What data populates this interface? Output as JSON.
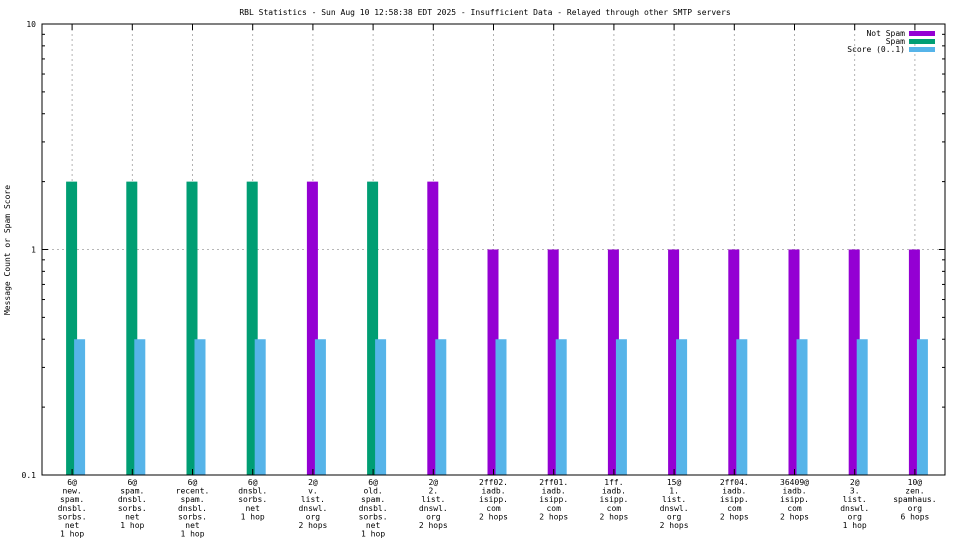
{
  "chart_data": {
    "type": "bar",
    "title": "RBL Statistics - Sun Aug 10 12:58:38 EDT 2025 - Insufficient Data - Relayed through other SMTP servers",
    "xlabel": "",
    "ylabel": "Message Count or Spam Score",
    "yscale": "log",
    "ylim": [
      0.1,
      10
    ],
    "yticks": [
      {
        "value": 0.1,
        "label": "0.1"
      },
      {
        "value": 1,
        "label": "1"
      },
      {
        "value": 10,
        "label": "10"
      }
    ],
    "grid": true,
    "legend_position": "top-right",
    "categories": [
      [
        "6@",
        "new.",
        "spam.",
        "dnsbl.",
        "sorbs.",
        "net",
        "1 hop"
      ],
      [
        "6@",
        "spam.",
        "dnsbl.",
        "sorbs.",
        "net",
        "1 hop"
      ],
      [
        "6@",
        "recent.",
        "spam.",
        "dnsbl.",
        "sorbs.",
        "net",
        "1 hop"
      ],
      [
        "6@",
        "dnsbl.",
        "sorbs.",
        "net",
        "1 hop"
      ],
      [
        "2@",
        "v.",
        "list.",
        "dnswl.",
        "org",
        "2 hops"
      ],
      [
        "6@",
        "old.",
        "spam.",
        "dnsbl.",
        "sorbs.",
        "net",
        "1 hop"
      ],
      [
        "2@",
        "2.",
        "list.",
        "dnswl.",
        "org",
        "2 hops"
      ],
      [
        "2ff02.",
        "iadb.",
        "isipp.",
        "com",
        "2 hops"
      ],
      [
        "2ff01.",
        "iadb.",
        "isipp.",
        "com",
        "2 hops"
      ],
      [
        "1ff.",
        "iadb.",
        "isipp.",
        "com",
        "2 hops"
      ],
      [
        "15@",
        "1.",
        "list.",
        "dnswl.",
        "org",
        "2 hops"
      ],
      [
        "2ff04.",
        "iadb.",
        "isipp.",
        "com",
        "2 hops"
      ],
      [
        "36409@",
        "iadb.",
        "isipp.",
        "com",
        "2 hops"
      ],
      [
        "2@",
        "3.",
        "list.",
        "dnswl.",
        "org",
        "1 hop"
      ],
      [
        "10@",
        "zen.",
        "spamhaus.",
        "org",
        "6 hops"
      ]
    ],
    "series": [
      {
        "name": "Not Spam",
        "color": "#9400d3",
        "values": [
          0,
          0,
          0,
          0,
          2,
          0,
          2,
          1,
          1,
          1,
          1,
          1,
          1,
          1,
          1
        ]
      },
      {
        "name": "Spam",
        "color": "#009e73",
        "values": [
          2,
          2,
          2,
          2,
          0,
          2,
          0,
          0,
          0,
          0,
          0,
          0,
          0,
          0,
          0
        ]
      },
      {
        "name": "Score (0..1)",
        "color": "#56b4e9",
        "values": [
          0.4,
          0.4,
          0.4,
          0.4,
          0.4,
          0.4,
          0.4,
          0.4,
          0.4,
          0.4,
          0.4,
          0.4,
          0.4,
          0.4,
          0.4
        ]
      }
    ]
  }
}
